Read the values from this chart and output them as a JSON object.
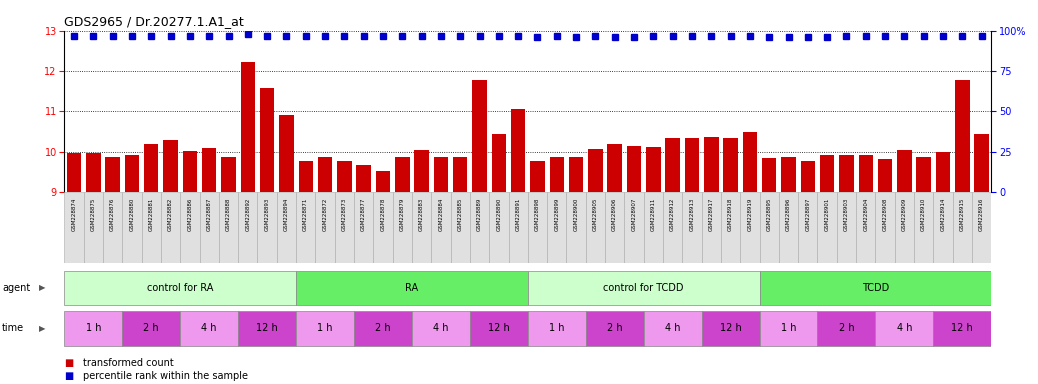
{
  "title": "GDS2965 / Dr.20277.1.A1_at",
  "samples": [
    "GSM228874",
    "GSM228875",
    "GSM228876",
    "GSM228880",
    "GSM228881",
    "GSM228882",
    "GSM228886",
    "GSM228887",
    "GSM228888",
    "GSM228892",
    "GSM228893",
    "GSM228894",
    "GSM228871",
    "GSM228872",
    "GSM228873",
    "GSM228877",
    "GSM228878",
    "GSM228879",
    "GSM228883",
    "GSM228884",
    "GSM228885",
    "GSM228889",
    "GSM228890",
    "GSM228891",
    "GSM228898",
    "GSM228899",
    "GSM228900",
    "GSM228905",
    "GSM228906",
    "GSM228907",
    "GSM228911",
    "GSM228912",
    "GSM228913",
    "GSM228917",
    "GSM228918",
    "GSM228919",
    "GSM228895",
    "GSM228896",
    "GSM228897",
    "GSM228901",
    "GSM228903",
    "GSM228904",
    "GSM228908",
    "GSM228909",
    "GSM228910",
    "GSM228914",
    "GSM228915",
    "GSM228916"
  ],
  "bar_values": [
    9.97,
    9.96,
    9.87,
    9.92,
    10.2,
    10.28,
    10.02,
    10.1,
    9.88,
    12.22,
    11.57,
    10.92,
    9.78,
    9.88,
    9.78,
    9.68,
    9.52,
    9.88,
    10.05,
    9.88,
    9.88,
    11.78,
    10.45,
    11.05,
    9.78,
    9.87,
    9.87,
    10.07,
    10.18,
    10.15,
    10.12,
    10.33,
    10.35,
    10.37,
    10.33,
    10.48,
    9.85,
    9.87,
    9.78,
    9.92,
    9.92,
    9.92,
    9.82,
    10.03,
    9.87,
    9.98,
    11.78,
    10.45
  ],
  "percentile_values": [
    97,
    97,
    97,
    97,
    97,
    97,
    97,
    97,
    97,
    98,
    97,
    97,
    97,
    97,
    97,
    97,
    97,
    97,
    97,
    97,
    97,
    97,
    97,
    97,
    96,
    97,
    96,
    97,
    96,
    96,
    97,
    97,
    97,
    97,
    97,
    97,
    96,
    96,
    96,
    96,
    97,
    97,
    97,
    97,
    97,
    97,
    97,
    97
  ],
  "ylim_left": [
    9,
    13
  ],
  "ylim_right": [
    0,
    100
  ],
  "yticks_left": [
    9,
    10,
    11,
    12,
    13
  ],
  "yticks_right": [
    0,
    25,
    50,
    75,
    100
  ],
  "bar_color": "#cc0000",
  "dot_color": "#0000cc",
  "agent_groups": [
    {
      "label": "control for RA",
      "color": "#ccffcc",
      "start": 0,
      "end": 12
    },
    {
      "label": "RA",
      "color": "#66ee66",
      "start": 12,
      "end": 24
    },
    {
      "label": "control for TCDD",
      "color": "#ccffcc",
      "start": 24,
      "end": 36
    },
    {
      "label": "TCDD",
      "color": "#66ee66",
      "start": 36,
      "end": 48
    }
  ],
  "time_groups": [
    {
      "label": "1 h",
      "color": "#ee99ee",
      "start": 0,
      "end": 3
    },
    {
      "label": "2 h",
      "color": "#cc44cc",
      "start": 3,
      "end": 6
    },
    {
      "label": "4 h",
      "color": "#ee99ee",
      "start": 6,
      "end": 9
    },
    {
      "label": "12 h",
      "color": "#cc44cc",
      "start": 9,
      "end": 12
    },
    {
      "label": "1 h",
      "color": "#ee99ee",
      "start": 12,
      "end": 15
    },
    {
      "label": "2 h",
      "color": "#cc44cc",
      "start": 15,
      "end": 18
    },
    {
      "label": "4 h",
      "color": "#ee99ee",
      "start": 18,
      "end": 21
    },
    {
      "label": "12 h",
      "color": "#cc44cc",
      "start": 21,
      "end": 24
    },
    {
      "label": "1 h",
      "color": "#ee99ee",
      "start": 24,
      "end": 27
    },
    {
      "label": "2 h",
      "color": "#cc44cc",
      "start": 27,
      "end": 30
    },
    {
      "label": "4 h",
      "color": "#ee99ee",
      "start": 30,
      "end": 33
    },
    {
      "label": "12 h",
      "color": "#cc44cc",
      "start": 33,
      "end": 36
    },
    {
      "label": "1 h",
      "color": "#ee99ee",
      "start": 36,
      "end": 39
    },
    {
      "label": "2 h",
      "color": "#cc44cc",
      "start": 39,
      "end": 42
    },
    {
      "label": "4 h",
      "color": "#ee99ee",
      "start": 42,
      "end": 45
    },
    {
      "label": "12 h",
      "color": "#cc44cc",
      "start": 45,
      "end": 48
    }
  ]
}
